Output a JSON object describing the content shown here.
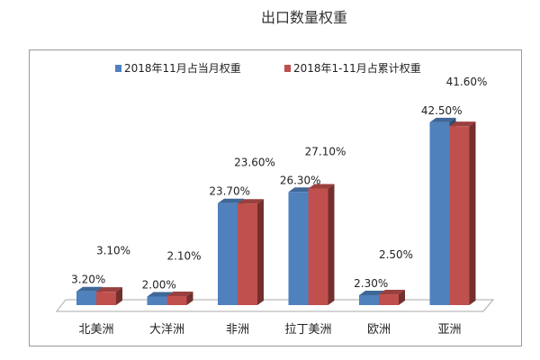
{
  "chart_data": {
    "type": "bar",
    "title": "出口数量权重",
    "categories": [
      "北美洲",
      "大洋洲",
      "非洲",
      "拉丁美洲",
      "欧洲",
      "亚洲"
    ],
    "series": [
      {
        "name": "2018年11月占当月权重",
        "values": [
          3.2,
          2.0,
          23.7,
          26.3,
          2.3,
          42.5
        ],
        "labels": [
          "3.20%",
          "2.00%",
          "23.70%",
          "26.30%",
          "2.30%",
          "42.50%"
        ],
        "color": "#4f81bd"
      },
      {
        "name": "2018年1-11月占累计权重",
        "values": [
          3.1,
          2.1,
          23.6,
          27.1,
          2.5,
          41.6
        ],
        "labels": [
          "3.10%",
          "2.10%",
          "23.60%",
          "27.10%",
          "2.50%",
          "41.60%"
        ],
        "color": "#c0504d"
      }
    ],
    "xlabel": "",
    "ylabel": "",
    "ylim": [
      0,
      45
    ],
    "grid": false,
    "legend": "top"
  }
}
